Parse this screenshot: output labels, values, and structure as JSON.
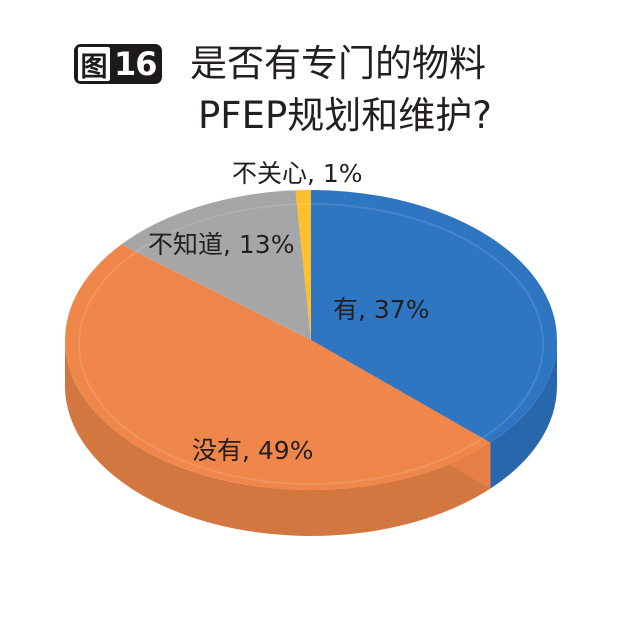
{
  "figure": {
    "badge_char": "图",
    "badge_number": "16",
    "title_line1": "是否有专门的物料",
    "title_line2": "PFEP规划和维护?"
  },
  "chart_data": {
    "type": "pie",
    "style": "3d",
    "title": "是否有专门的物料PFEP规划和维护?",
    "categories": [
      "有",
      "没有",
      "不知道",
      "不关心"
    ],
    "values": [
      37,
      49,
      13,
      1
    ],
    "unit": "%",
    "colors": [
      "#2e75c2",
      "#f0874a",
      "#a5a6a8",
      "#fdbf2d"
    ],
    "data_labels": [
      "有, 37%",
      "没有, 49%",
      "不知道, 13%",
      "不关心, 1%"
    ],
    "legend": "none"
  },
  "labels": {
    "you": "有, 37%",
    "meiyou": "没有, 49%",
    "buzhidao": "不知道, 13%",
    "buguanxin": "不关心, 1%"
  }
}
